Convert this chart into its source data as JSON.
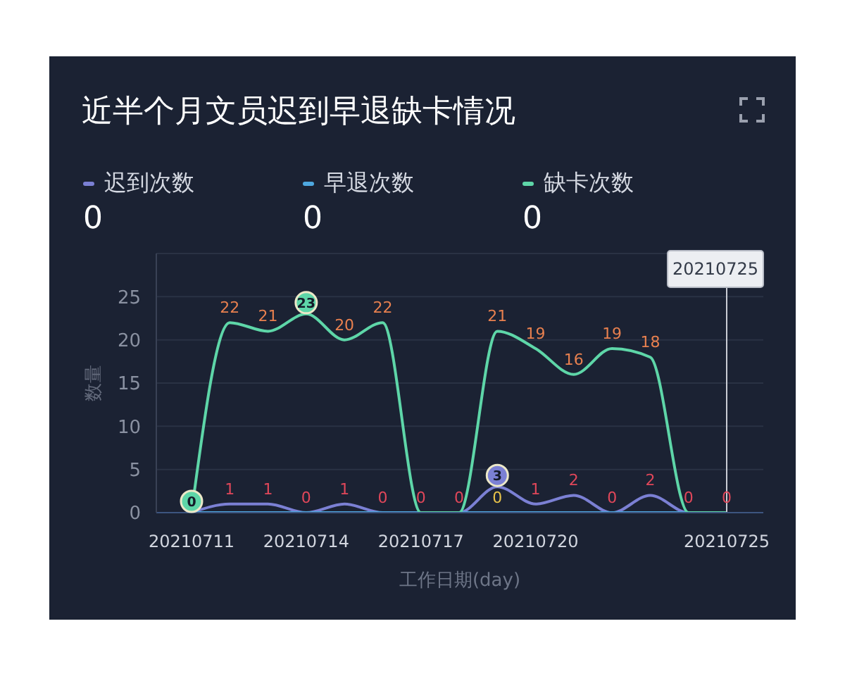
{
  "chart_data": {
    "type": "line",
    "title": "近半个月文员迟到早退缺卡情况",
    "xlabel": "工作日期(day)",
    "ylabel": "数量",
    "categories": [
      "20210711",
      null,
      null,
      "20210714",
      null,
      null,
      "20210717",
      null,
      null,
      "20210720",
      null,
      null,
      null,
      null,
      "20210725"
    ],
    "series": [
      {
        "name": "迟到次数",
        "color": "#7b80d4",
        "values": [
          0,
          1,
          1,
          0,
          1,
          0,
          0,
          0,
          3,
          1,
          2,
          0,
          2,
          0,
          0
        ],
        "value_labels": [
          null,
          "1",
          "1",
          "0",
          "1",
          "0",
          "0",
          "0",
          null,
          "1",
          "2",
          "0",
          "2",
          "0",
          "0"
        ]
      },
      {
        "name": "早退次数",
        "color": "#4ea8e0",
        "values": [
          0,
          0,
          0,
          0,
          0,
          0,
          0,
          0,
          0,
          0,
          0,
          0,
          0,
          0,
          0
        ],
        "value_labels": [
          null,
          null,
          null,
          null,
          null,
          null,
          null,
          null,
          "0",
          null,
          null,
          null,
          null,
          null,
          null
        ]
      },
      {
        "name": "缺卡次数",
        "color": "#5ed6a8",
        "values": [
          0,
          22,
          21,
          23,
          20,
          22,
          0,
          0,
          21,
          19,
          16,
          19,
          18,
          0,
          0
        ],
        "value_labels": [
          null,
          "22",
          "21",
          null,
          "20",
          "22",
          null,
          null,
          "21",
          "19",
          "16",
          "19",
          "18",
          null,
          null
        ]
      }
    ],
    "ylim": [
      0,
      30
    ],
    "yticks": [
      0,
      5,
      10,
      15,
      20,
      25
    ],
    "grid": "y",
    "legend": "top",
    "marker": "none",
    "line_style": "solid",
    "ref_lines": [
      {
        "axis": "x",
        "value": "20210725",
        "label": "20210725",
        "color": "#c9ccd4"
      }
    ],
    "annotations": [
      "0",
      "0",
      "0",
      {
        "text": "0",
        "x": "20210711",
        "y": 0
      },
      {
        "text": "23",
        "x": "20210714",
        "y": 23
      },
      {
        "text": "3",
        "y": 3
      }
    ]
  }
}
